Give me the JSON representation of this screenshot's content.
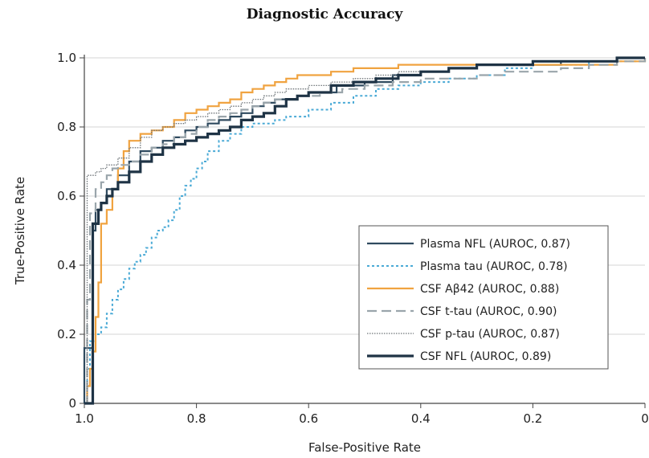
{
  "chart_data": {
    "type": "line",
    "title": "Diagnostic Accuracy",
    "xlabel": "False-Positive Rate",
    "ylabel": "True-Positive Rate",
    "xlim": [
      1.0,
      0
    ],
    "ylim": [
      0,
      1.0
    ],
    "x_reversed": true,
    "x_ticks": [
      {
        "value": 1.0,
        "label": "1.0"
      },
      {
        "value": 0.8,
        "label": "0.8"
      },
      {
        "value": 0.6,
        "label": "0.6"
      },
      {
        "value": 0.4,
        "label": "0.4"
      },
      {
        "value": 0.2,
        "label": "0.2"
      },
      {
        "value": 0.0,
        "label": "0"
      }
    ],
    "y_ticks": [
      {
        "value": 0.0,
        "label": "0"
      },
      {
        "value": 0.2,
        "label": "0.2"
      },
      {
        "value": 0.4,
        "label": "0.4"
      },
      {
        "value": 0.6,
        "label": "0.6"
      },
      {
        "value": 0.8,
        "label": "0.8"
      },
      {
        "value": 1.0,
        "label": "1.0"
      }
    ],
    "grid": "horizontal",
    "legend_position": "lower-right",
    "series": [
      {
        "name": "Plasma NFL (AUROC, 0.87)",
        "color": "#2f4a5f",
        "style": "solid",
        "x": [
          1.0,
          1.0,
          0.985,
          0.98,
          0.97,
          0.96,
          0.94,
          0.92,
          0.9,
          0.88,
          0.86,
          0.84,
          0.82,
          0.8,
          0.78,
          0.76,
          0.74,
          0.72,
          0.7,
          0.68,
          0.66,
          0.64,
          0.62,
          0.6,
          0.55,
          0.5,
          0.45,
          0.4,
          0.35,
          0.3,
          0.25,
          0.2,
          0.15,
          0.1,
          0.05,
          0.0
        ],
        "y": [
          0.0,
          0.16,
          0.5,
          0.56,
          0.58,
          0.62,
          0.66,
          0.7,
          0.73,
          0.74,
          0.76,
          0.77,
          0.79,
          0.8,
          0.81,
          0.82,
          0.83,
          0.84,
          0.86,
          0.87,
          0.88,
          0.88,
          0.89,
          0.9,
          0.92,
          0.93,
          0.95,
          0.96,
          0.97,
          0.98,
          0.98,
          0.98,
          0.99,
          0.99,
          1.0,
          1.0
        ]
      },
      {
        "name": "Plasma tau (AUROC, 0.78)",
        "color": "#4aaad6",
        "style": "dotted",
        "x": [
          1.0,
          0.995,
          0.99,
          0.98,
          0.97,
          0.96,
          0.95,
          0.94,
          0.93,
          0.92,
          0.91,
          0.9,
          0.89,
          0.88,
          0.87,
          0.86,
          0.85,
          0.84,
          0.83,
          0.82,
          0.81,
          0.8,
          0.79,
          0.78,
          0.76,
          0.74,
          0.72,
          0.7,
          0.68,
          0.66,
          0.64,
          0.6,
          0.56,
          0.52,
          0.48,
          0.44,
          0.4,
          0.35,
          0.3,
          0.25,
          0.2,
          0.15,
          0.1,
          0.05,
          0.0
        ],
        "y": [
          0.0,
          0.1,
          0.18,
          0.2,
          0.22,
          0.26,
          0.3,
          0.33,
          0.36,
          0.39,
          0.41,
          0.43,
          0.45,
          0.48,
          0.5,
          0.51,
          0.53,
          0.56,
          0.6,
          0.63,
          0.65,
          0.68,
          0.7,
          0.73,
          0.76,
          0.78,
          0.8,
          0.81,
          0.81,
          0.82,
          0.83,
          0.85,
          0.87,
          0.89,
          0.91,
          0.92,
          0.93,
          0.94,
          0.95,
          0.97,
          0.98,
          0.98,
          0.99,
          0.99,
          1.0
        ]
      },
      {
        "name": "CSF Aβ42 (AUROC, 0.88)",
        "color": "#f0a340",
        "style": "solid",
        "x": [
          1.0,
          0.995,
          0.99,
          0.985,
          0.98,
          0.975,
          0.97,
          0.96,
          0.95,
          0.94,
          0.93,
          0.92,
          0.9,
          0.88,
          0.86,
          0.84,
          0.82,
          0.8,
          0.78,
          0.76,
          0.74,
          0.72,
          0.7,
          0.68,
          0.66,
          0.64,
          0.62,
          0.6,
          0.56,
          0.52,
          0.48,
          0.44,
          0.4,
          0.3,
          0.2,
          0.1,
          0.05,
          0.0
        ],
        "y": [
          0.0,
          0.05,
          0.1,
          0.15,
          0.25,
          0.35,
          0.52,
          0.56,
          0.62,
          0.68,
          0.73,
          0.76,
          0.78,
          0.79,
          0.8,
          0.82,
          0.84,
          0.85,
          0.86,
          0.87,
          0.88,
          0.9,
          0.91,
          0.92,
          0.93,
          0.94,
          0.95,
          0.95,
          0.96,
          0.97,
          0.97,
          0.98,
          0.98,
          0.98,
          0.98,
          0.98,
          0.99,
          1.0
        ]
      },
      {
        "name": "CSF t-tau (AUROC, 0.90)",
        "color": "#9aa5ab",
        "style": "dashed",
        "x": [
          1.0,
          0.995,
          0.99,
          0.98,
          0.97,
          0.96,
          0.95,
          0.94,
          0.92,
          0.9,
          0.88,
          0.86,
          0.84,
          0.82,
          0.8,
          0.78,
          0.76,
          0.74,
          0.72,
          0.7,
          0.68,
          0.66,
          0.62,
          0.58,
          0.54,
          0.5,
          0.45,
          0.4,
          0.35,
          0.3,
          0.25,
          0.2,
          0.15,
          0.1,
          0.05,
          0.0
        ],
        "y": [
          0.0,
          0.3,
          0.55,
          0.62,
          0.64,
          0.66,
          0.68,
          0.69,
          0.7,
          0.72,
          0.74,
          0.75,
          0.77,
          0.78,
          0.8,
          0.82,
          0.83,
          0.84,
          0.85,
          0.86,
          0.87,
          0.88,
          0.89,
          0.9,
          0.91,
          0.92,
          0.93,
          0.94,
          0.94,
          0.95,
          0.96,
          0.96,
          0.97,
          0.98,
          0.99,
          1.0
        ]
      },
      {
        "name": "CSF p-tau (AUROC, 0.87)",
        "color": "#6e7478",
        "style": "fine-dotted",
        "x": [
          1.0,
          0.995,
          0.99,
          0.98,
          0.97,
          0.96,
          0.94,
          0.92,
          0.9,
          0.88,
          0.86,
          0.84,
          0.82,
          0.8,
          0.78,
          0.76,
          0.74,
          0.72,
          0.7,
          0.68,
          0.66,
          0.64,
          0.6,
          0.56,
          0.52,
          0.48,
          0.44,
          0.4,
          0.35,
          0.3,
          0.25,
          0.2,
          0.15,
          0.1,
          0.05,
          0.0
        ],
        "y": [
          0.0,
          0.66,
          0.66,
          0.67,
          0.68,
          0.69,
          0.71,
          0.74,
          0.77,
          0.79,
          0.8,
          0.81,
          0.82,
          0.83,
          0.84,
          0.85,
          0.86,
          0.87,
          0.88,
          0.89,
          0.9,
          0.91,
          0.92,
          0.93,
          0.94,
          0.95,
          0.96,
          0.96,
          0.97,
          0.98,
          0.98,
          0.99,
          0.99,
          0.99,
          1.0,
          1.0
        ]
      },
      {
        "name": "CSF NFL (AUROC, 0.89)",
        "color": "#1e3345",
        "style": "solid-thick",
        "x": [
          1.0,
          0.99,
          0.985,
          0.98,
          0.975,
          0.97,
          0.96,
          0.95,
          0.94,
          0.92,
          0.9,
          0.88,
          0.86,
          0.84,
          0.82,
          0.8,
          0.78,
          0.76,
          0.74,
          0.72,
          0.7,
          0.68,
          0.66,
          0.64,
          0.62,
          0.6,
          0.56,
          0.52,
          0.48,
          0.44,
          0.4,
          0.35,
          0.3,
          0.25,
          0.2,
          0.15,
          0.1,
          0.05,
          0.0
        ],
        "y": [
          0.0,
          0.0,
          0.52,
          0.52,
          0.56,
          0.58,
          0.6,
          0.62,
          0.64,
          0.67,
          0.7,
          0.72,
          0.74,
          0.75,
          0.76,
          0.77,
          0.78,
          0.79,
          0.8,
          0.82,
          0.83,
          0.84,
          0.86,
          0.88,
          0.89,
          0.9,
          0.92,
          0.93,
          0.94,
          0.95,
          0.96,
          0.97,
          0.98,
          0.98,
          0.99,
          0.99,
          0.99,
          1.0,
          1.0
        ]
      }
    ]
  }
}
